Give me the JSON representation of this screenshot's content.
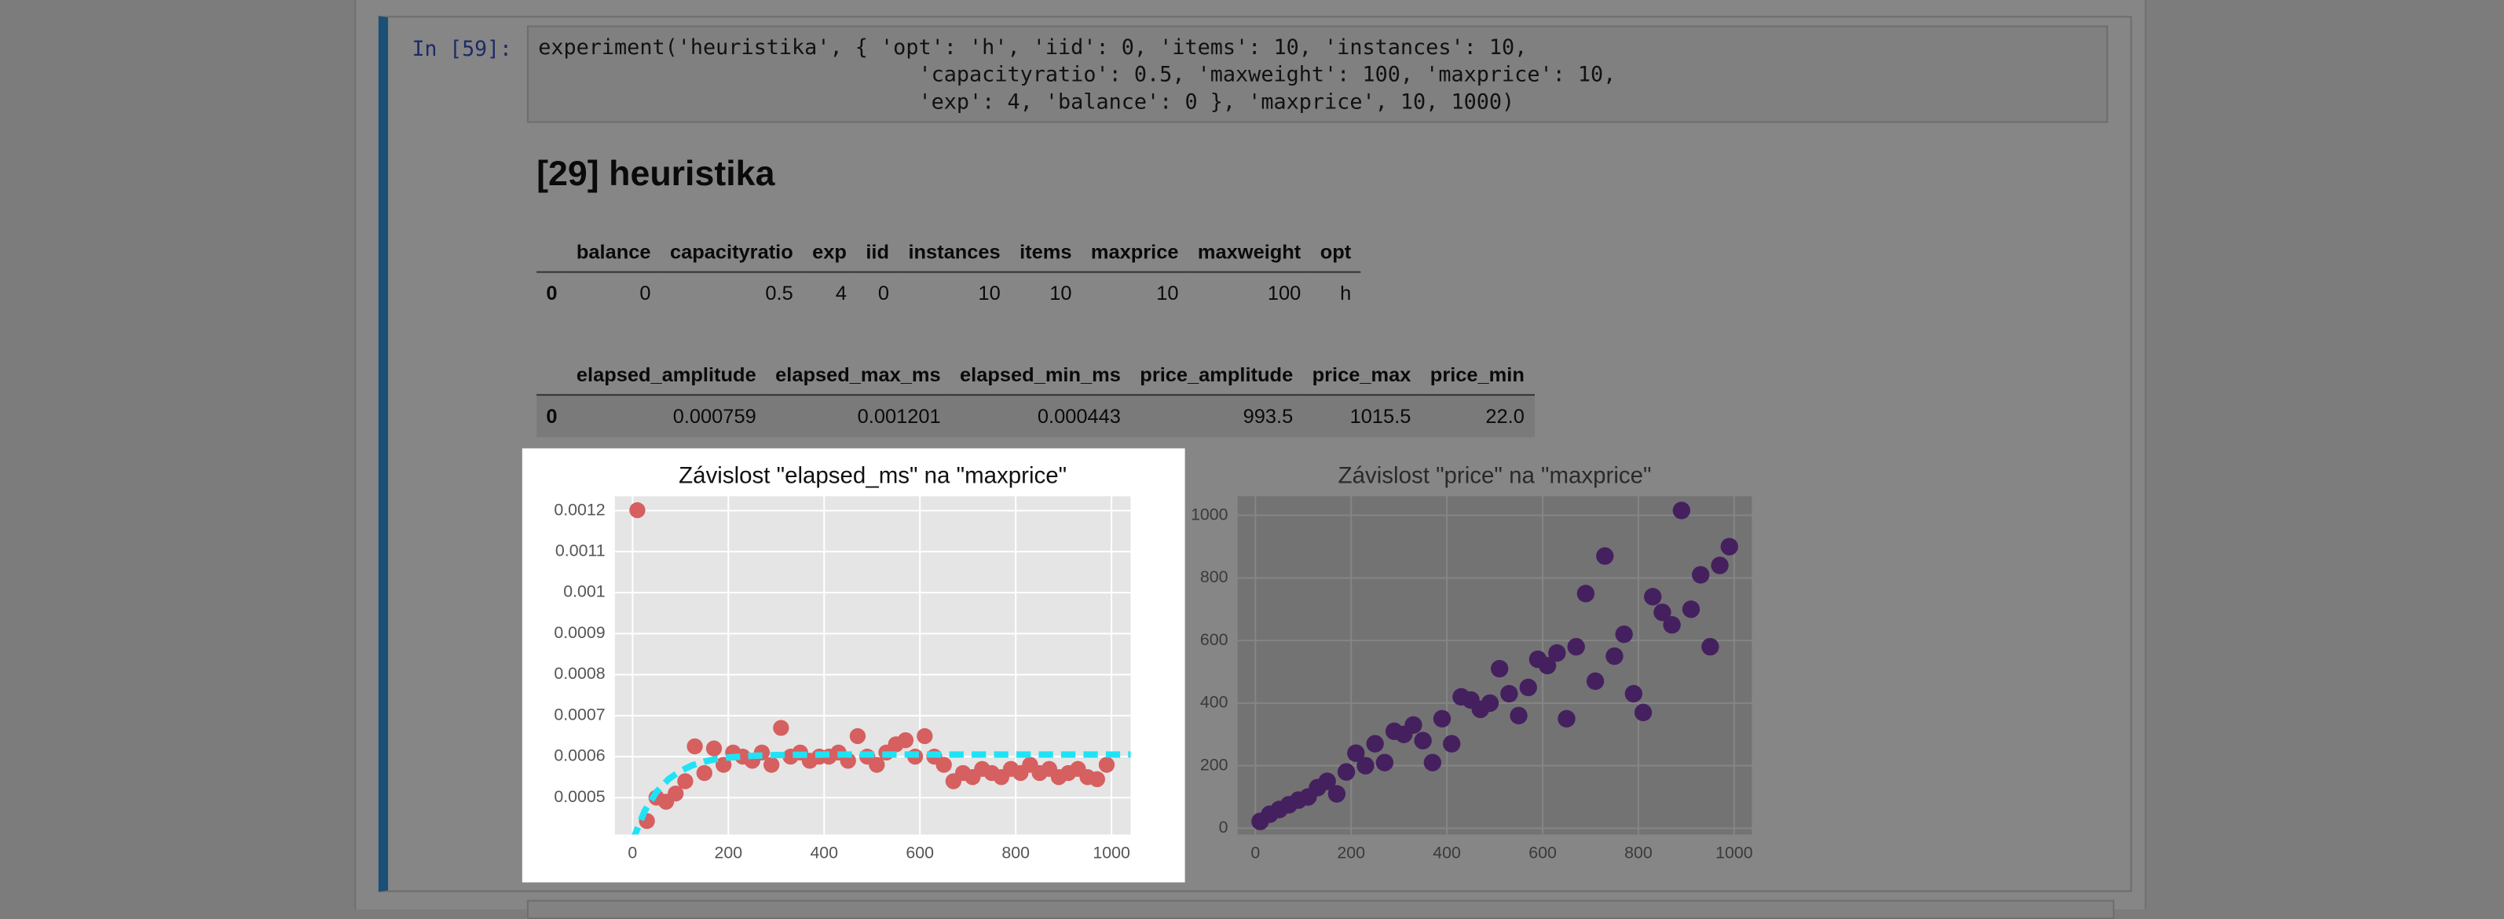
{
  "prompt": "In [59]:",
  "code_lines": [
    "experiment('heuristika', { 'opt': 'h', 'iid': 0, 'items': 10, 'instances': 10,",
    "                              'capacityratio': 0.5, 'maxweight': 100, 'maxprice': 10,",
    "                              'exp': 4, 'balance': 0 }, 'maxprice', 10, 1000)"
  ],
  "heading": "[29] heuristika",
  "table1": {
    "columns": [
      "",
      "balance",
      "capacityratio",
      "exp",
      "iid",
      "instances",
      "items",
      "maxprice",
      "maxweight",
      "opt"
    ],
    "rows": [
      [
        "0",
        "0",
        "0.5",
        "4",
        "0",
        "10",
        "10",
        "10",
        "100",
        "h"
      ]
    ]
  },
  "table2": {
    "columns": [
      "",
      "elapsed_amplitude",
      "elapsed_max_ms",
      "elapsed_min_ms",
      "price_amplitude",
      "price_max",
      "price_min"
    ],
    "rows": [
      [
        "0",
        "0.000759",
        "0.001201",
        "0.000443",
        "993.5",
        "1015.5",
        "22.0"
      ]
    ]
  },
  "chart_data": [
    {
      "type": "scatter",
      "title": "Závislost \"elapsed_ms\" na \"maxprice\"",
      "xlim": [
        -37,
        1040
      ],
      "xticks": [
        0,
        200,
        400,
        600,
        800,
        1000
      ],
      "ylim": [
        0.00041,
        0.001235
      ],
      "yticks": [
        0.0005,
        0.0006,
        0.0007,
        0.0008,
        0.0009,
        0.001,
        0.0011,
        0.0012
      ],
      "grid": true,
      "series": [
        {
          "color": "#d65f5f",
          "x": [
            10,
            30,
            50,
            70,
            90,
            110,
            130,
            150,
            170,
            190,
            210,
            230,
            250,
            270,
            290,
            310,
            330,
            350,
            370,
            390,
            410,
            430,
            450,
            470,
            490,
            510,
            530,
            550,
            570,
            590,
            610,
            630,
            650,
            670,
            690,
            710,
            730,
            750,
            770,
            790,
            810,
            830,
            850,
            870,
            890,
            910,
            930,
            950,
            970,
            990
          ],
          "values": [
            0.001201,
            0.000443,
            0.0005,
            0.00049,
            0.00051,
            0.00054,
            0.000625,
            0.00056,
            0.00062,
            0.00058,
            0.00061,
            0.0006,
            0.00059,
            0.00061,
            0.00058,
            0.00067,
            0.0006,
            0.00061,
            0.00059,
            0.0006,
            0.0006,
            0.00061,
            0.00059,
            0.00065,
            0.0006,
            0.00058,
            0.00061,
            0.00063,
            0.00064,
            0.0006,
            0.00065,
            0.0006,
            0.00058,
            0.00054,
            0.00056,
            0.00055,
            0.00057,
            0.00056,
            0.00055,
            0.00057,
            0.00056,
            0.00058,
            0.00056,
            0.00057,
            0.00055,
            0.00056,
            0.00057,
            0.00055,
            0.000545,
            0.00058
          ]
        },
        {
          "type": "line",
          "linestyle": "dashed",
          "color": "#1fe3f5",
          "x": [
            0,
            25,
            50,
            75,
            100,
            125,
            150,
            175,
            200,
            250,
            300,
            400,
            500,
            600,
            700,
            800,
            900,
            1000,
            1040
          ],
          "values": [
            0.000395,
            0.000467,
            0.000514,
            0.000545,
            0.000565,
            0.000579,
            0.000588,
            0.000594,
            0.000598,
            0.000602,
            0.000604,
            0.000605,
            0.000605,
            0.000605,
            0.000605,
            0.000605,
            0.000605,
            0.000605,
            0.000605
          ]
        }
      ]
    },
    {
      "type": "scatter",
      "title": "Závislost \"price\" na \"maxprice\"",
      "xlim": [
        -37,
        1037
      ],
      "xticks": [
        0,
        200,
        400,
        600,
        800,
        1000
      ],
      "ylim": [
        -20,
        1061
      ],
      "yticks": [
        0,
        200,
        400,
        600,
        800,
        1000
      ],
      "grid": true,
      "series": [
        {
          "color": "#45205f",
          "x": [
            10,
            30,
            50,
            70,
            90,
            110,
            130,
            150,
            170,
            190,
            210,
            230,
            250,
            270,
            290,
            310,
            330,
            350,
            370,
            390,
            410,
            430,
            450,
            470,
            490,
            510,
            530,
            550,
            570,
            590,
            610,
            630,
            650,
            670,
            690,
            710,
            730,
            750,
            770,
            790,
            810,
            830,
            850,
            870,
            890,
            910,
            930,
            950,
            970,
            990
          ],
          "values": [
            22,
            45,
            60,
            75,
            90,
            100,
            130,
            150,
            110,
            180,
            240,
            200,
            270,
            210,
            310,
            300,
            330,
            280,
            210,
            350,
            270,
            420,
            410,
            380,
            400,
            510,
            430,
            360,
            450,
            540,
            520,
            560,
            350,
            580,
            750,
            470,
            870,
            550,
            620,
            430,
            370,
            740,
            690,
            650,
            1015.5,
            700,
            810,
            580,
            840,
            900
          ]
        }
      ]
    }
  ]
}
